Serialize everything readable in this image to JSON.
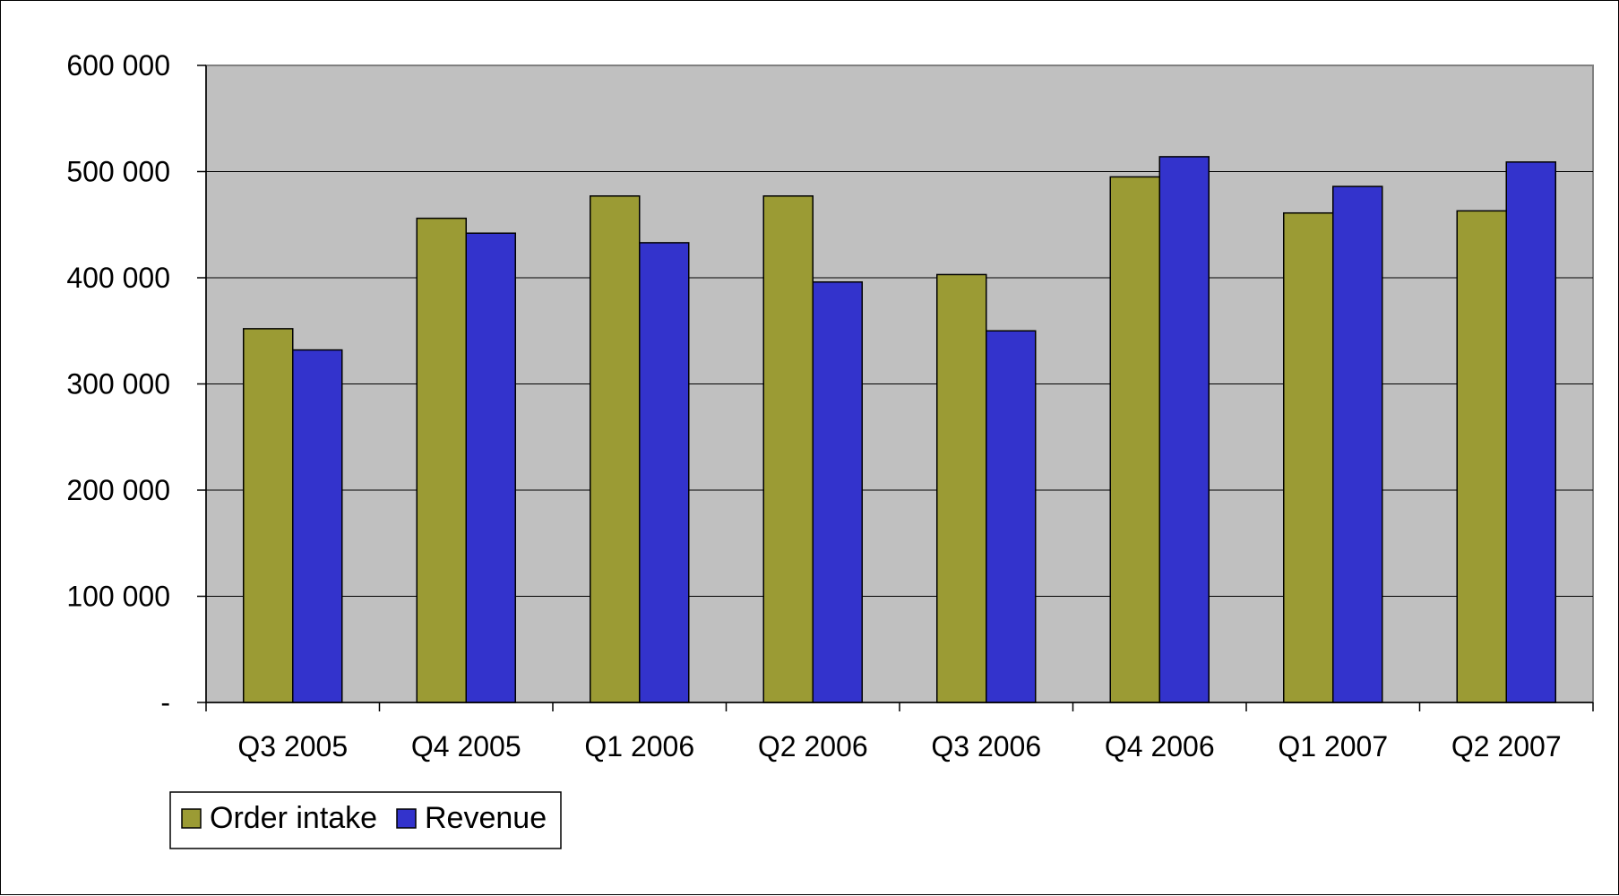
{
  "chart_data": {
    "type": "bar",
    "title": "",
    "xlabel": "",
    "ylabel": "",
    "categories": [
      "Q3 2005",
      "Q4 2005",
      "Q1 2006",
      "Q2 2006",
      "Q3 2006",
      "Q4 2006",
      "Q1 2007",
      "Q2 2007"
    ],
    "series": [
      {
        "name": "Order intake",
        "color": "#9b9b34",
        "values": [
          352000,
          456000,
          477000,
          477000,
          403000,
          495000,
          461000,
          463000
        ]
      },
      {
        "name": "Revenue",
        "color": "#3333cc",
        "values": [
          332000,
          442000,
          433000,
          396000,
          350000,
          514000,
          486000,
          509000
        ]
      }
    ],
    "ylim": [
      0,
      600000
    ],
    "yticks": [
      0,
      100000,
      200000,
      300000,
      400000,
      500000,
      600000
    ],
    "ytick_labels": [
      "-",
      "100 000",
      "200 000",
      "300 000",
      "400 000",
      "500 000",
      "600 000"
    ],
    "grid": true,
    "plot_background": "#c0c0c0",
    "legend_position": "bottom-left"
  }
}
